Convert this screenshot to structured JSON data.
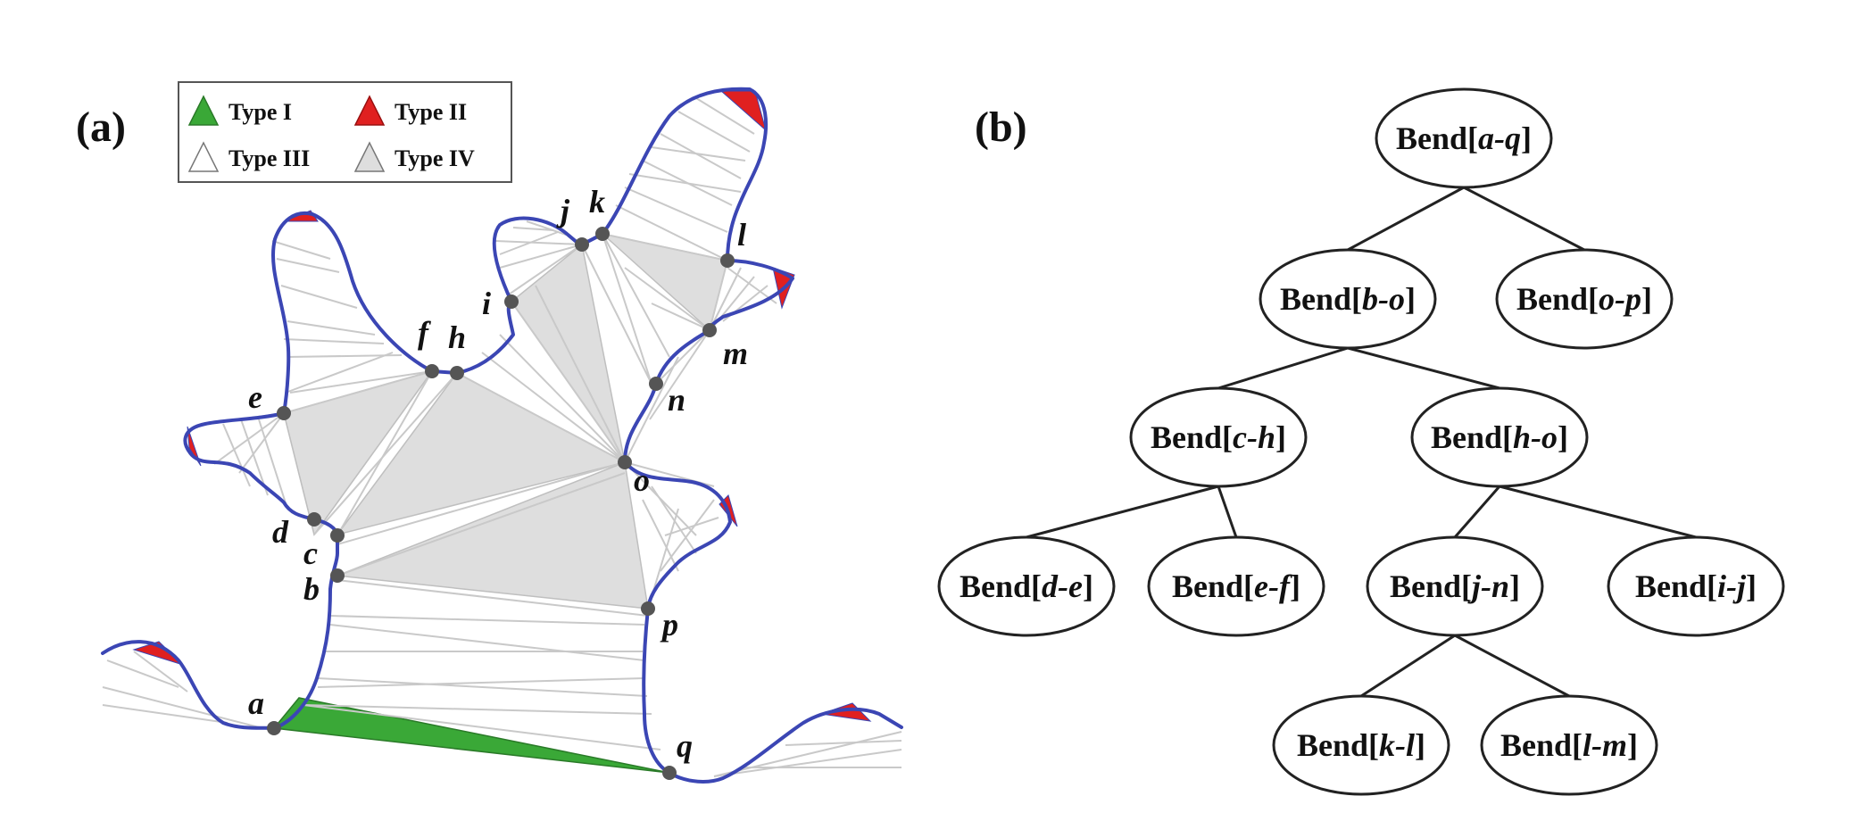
{
  "panels": {
    "a_label": "(a)",
    "b_label": "(b)"
  },
  "legend": {
    "items": [
      {
        "label": "Type I",
        "color": "#3aa837"
      },
      {
        "label": "Type II",
        "color": "#e02020"
      },
      {
        "label": "Type III",
        "color": "#ffffff"
      },
      {
        "label": "Type IV",
        "color": "#dedede"
      }
    ]
  },
  "points": {
    "a": "a",
    "b": "b",
    "c": "c",
    "d": "d",
    "e": "e",
    "f": "f",
    "h": "h",
    "i": "i",
    "j": "j",
    "k": "k",
    "l": "l",
    "m": "m",
    "n": "n",
    "o": "o",
    "p": "p",
    "q": "q"
  },
  "tree": {
    "word": "Bend",
    "nodes": [
      {
        "id": "aq",
        "range": "a-q"
      },
      {
        "id": "bo",
        "range": "b-o"
      },
      {
        "id": "op",
        "range": "o-p"
      },
      {
        "id": "ch",
        "range": "c-h"
      },
      {
        "id": "ho",
        "range": "h-o"
      },
      {
        "id": "de",
        "range": "d-e"
      },
      {
        "id": "ef",
        "range": "e-f"
      },
      {
        "id": "jn",
        "range": "j-n"
      },
      {
        "id": "ij",
        "range": "i-j"
      },
      {
        "id": "kl",
        "range": "k-l"
      },
      {
        "id": "lm",
        "range": "l-m"
      }
    ],
    "edges": [
      [
        "aq",
        "bo"
      ],
      [
        "aq",
        "op"
      ],
      [
        "bo",
        "ch"
      ],
      [
        "bo",
        "ho"
      ],
      [
        "ch",
        "de"
      ],
      [
        "ch",
        "ef"
      ],
      [
        "ho",
        "jn"
      ],
      [
        "ho",
        "ij"
      ],
      [
        "jn",
        "kl"
      ],
      [
        "jn",
        "lm"
      ]
    ]
  }
}
